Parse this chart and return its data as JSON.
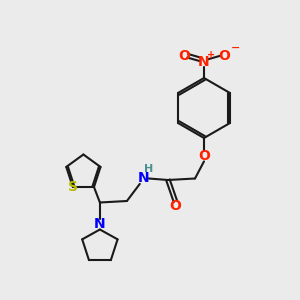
{
  "bg_color": "#ebebeb",
  "bond_color": "#1a1a1a",
  "N_color": "#0000ff",
  "O_color": "#ff2200",
  "S_color": "#bbbb00",
  "H_color": "#4a9090",
  "nitro_color": "#ff2200",
  "figsize": [
    3.0,
    3.0
  ],
  "dpi": 100,
  "xlim": [
    0,
    10
  ],
  "ylim": [
    0,
    10
  ]
}
